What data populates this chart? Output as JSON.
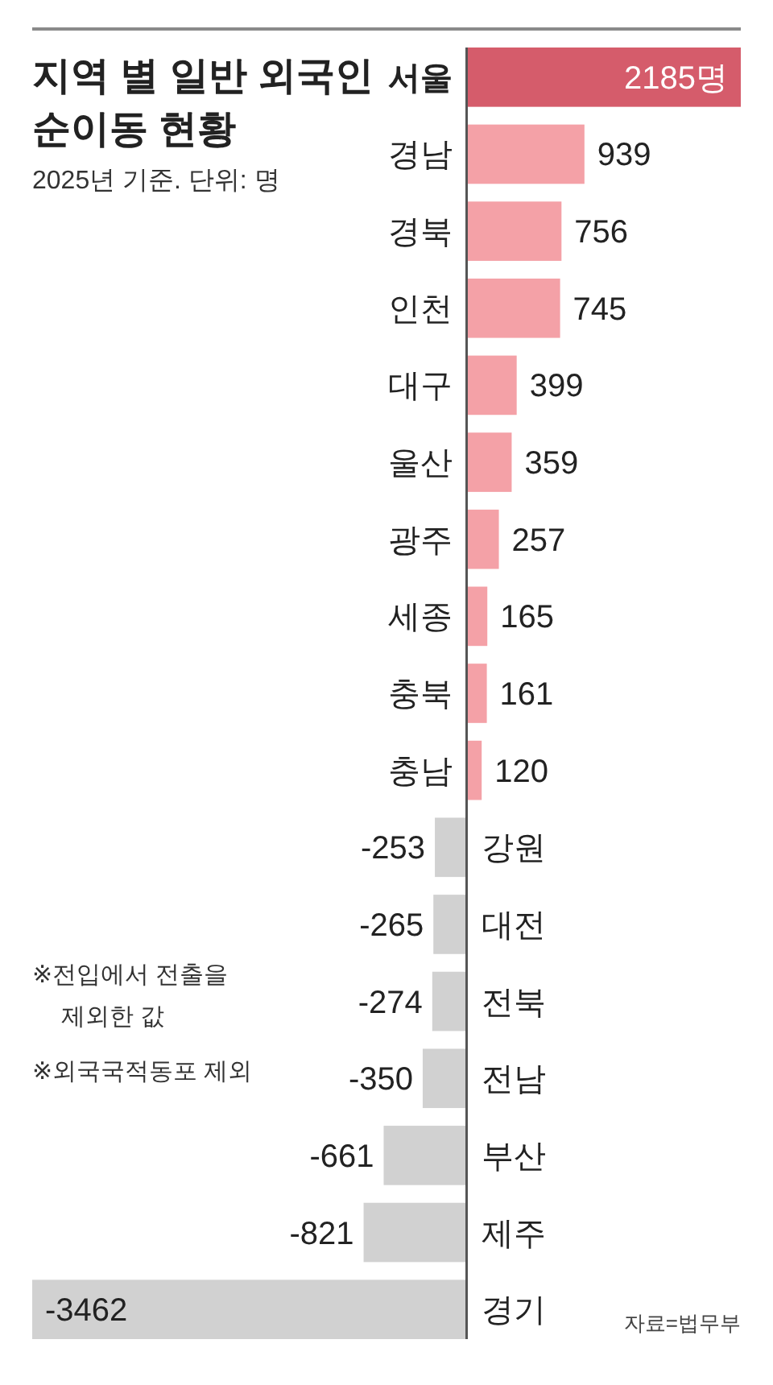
{
  "chart_data": {
    "type": "bar",
    "orientation": "horizontal",
    "title": "지역 별 일반 외국인\n순이동 현황",
    "subtitle": "2025년 기준. 단위: 명",
    "categories": [
      "서울",
      "경남",
      "경북",
      "인천",
      "대구",
      "울산",
      "광주",
      "세종",
      "충북",
      "충남",
      "강원",
      "대전",
      "전북",
      "전남",
      "부산",
      "제주",
      "경기"
    ],
    "values": [
      2185,
      939,
      756,
      745,
      399,
      359,
      257,
      165,
      161,
      120,
      -253,
      -265,
      -274,
      -350,
      -661,
      -821,
      -3462
    ],
    "colors": [
      "#d55c6b",
      "#f4a1a7",
      "#f4a1a7",
      "#f4a1a7",
      "#f4a1a7",
      "#f4a1a7",
      "#f4a1a7",
      "#f4a1a7",
      "#f4a1a7",
      "#f4a1a7",
      "#d1d1d1",
      "#d1d1d1",
      "#d1d1d1",
      "#d1d1d1",
      "#d1d1d1",
      "#d1d1d1",
      "#d1d1d1"
    ],
    "value_labels": [
      "2185명",
      "939",
      "756",
      "745",
      "399",
      "359",
      "257",
      "165",
      "161",
      "120",
      "-253",
      "-265",
      "-274",
      "-350",
      "-661",
      "-821",
      "-3462"
    ],
    "xlim": [
      -3462,
      2185
    ],
    "tick_labels": "y",
    "annotations": [
      "※전입에서 전출을\n제외한 값",
      "※외국국적동포 제외",
      "자료=법무부"
    ]
  }
}
